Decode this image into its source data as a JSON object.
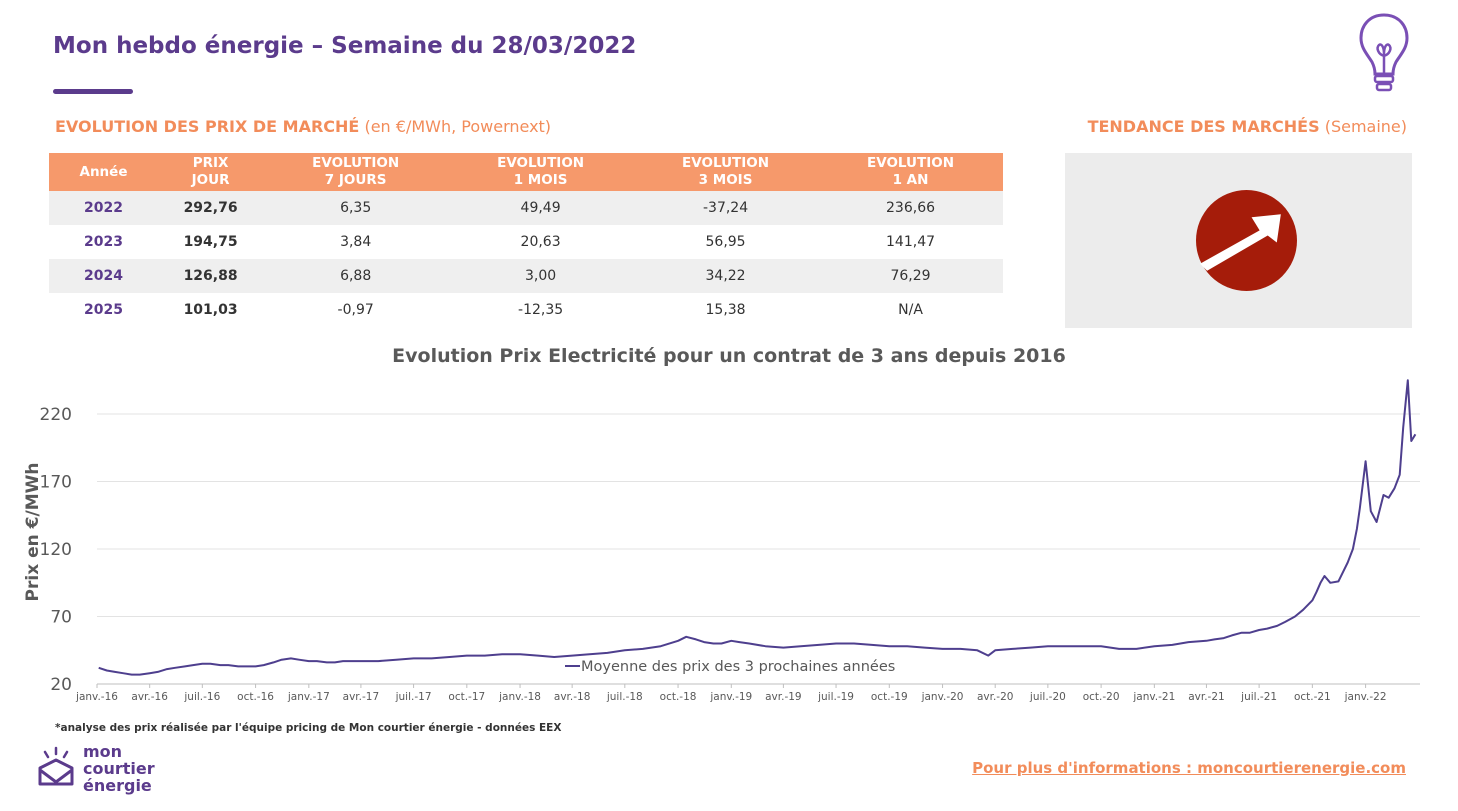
{
  "header": {
    "title": "Mon hebdo énergie – Semaine du 28/03/2022"
  },
  "market": {
    "title_bold": "EVOLUTION DES PRIX DE MARCHÉ",
    "title_rest": " (en €/MWh, Powernext)",
    "columns": [
      "Année",
      "PRIX\nJOUR",
      "EVOLUTION\n7 JOURS",
      "EVOLUTION\n1 MOIS",
      "EVOLUTION\n3 MOIS",
      "EVOLUTION\n1 AN"
    ],
    "rows": [
      [
        "2022",
        "292,76",
        "6,35",
        "49,49",
        "-37,24",
        "236,66"
      ],
      [
        "2023",
        "194,75",
        "3,84",
        "20,63",
        "56,95",
        "141,47"
      ],
      [
        "2024",
        "126,88",
        "6,88",
        "3,00",
        "34,22",
        "76,29"
      ],
      [
        "2025",
        "101,03",
        "-0,97",
        "-12,35",
        "15,38",
        "N/A"
      ]
    ]
  },
  "trend": {
    "title_bold": "TENDANCE DES MARCHÉS",
    "title_rest": " (Semaine)",
    "direction": "up",
    "icon": "arrow-up-right-icon",
    "color": "#a51c0a"
  },
  "chart_data": {
    "type": "line",
    "title": "Evolution Prix Electricité pour un contrat de 3 ans depuis 2016",
    "ylabel": "Prix en €/MWh",
    "ylim": [
      20,
      220
    ],
    "yticks": [
      20,
      70,
      120,
      170,
      220
    ],
    "grid": true,
    "legend_position": "bottom-center",
    "x_ticks": [
      "janv.-16",
      "avr.-16",
      "juil.-16",
      "oct.-16",
      "janv.-17",
      "avr.-17",
      "juil.-17",
      "oct.-17",
      "janv.-18",
      "avr.-18",
      "juil.-18",
      "oct.-18",
      "janv.-19",
      "avr.-19",
      "juil.-19",
      "oct.-19",
      "janv.-20",
      "avr.-20",
      "juil.-20",
      "oct.-20",
      "janv.-21",
      "avr.-21",
      "juil.-21",
      "oct.-21",
      "janv.-22"
    ],
    "series": [
      {
        "name": "Moyenne des prix des 3 prochaines années",
        "color": "#4e3f8e",
        "x": [
          "2016-01-04",
          "2016-01-18",
          "2016-02-01",
          "2016-02-15",
          "2016-03-01",
          "2016-03-15",
          "2016-04-01",
          "2016-04-15",
          "2016-05-01",
          "2016-05-15",
          "2016-06-01",
          "2016-06-15",
          "2016-07-01",
          "2016-07-15",
          "2016-08-01",
          "2016-08-15",
          "2016-09-01",
          "2016-09-15",
          "2016-10-01",
          "2016-10-15",
          "2016-11-01",
          "2016-11-15",
          "2016-12-01",
          "2016-12-15",
          "2017-01-01",
          "2017-01-15",
          "2017-02-01",
          "2017-02-15",
          "2017-03-01",
          "2017-03-15",
          "2017-04-01",
          "2017-05-01",
          "2017-06-01",
          "2017-07-01",
          "2017-08-01",
          "2017-09-01",
          "2017-10-01",
          "2017-11-01",
          "2017-12-01",
          "2018-01-01",
          "2018-02-01",
          "2018-03-01",
          "2018-04-01",
          "2018-05-01",
          "2018-06-01",
          "2018-07-01",
          "2018-08-01",
          "2018-09-01",
          "2018-10-01",
          "2018-10-15",
          "2018-11-01",
          "2018-11-15",
          "2018-12-01",
          "2018-12-15",
          "2019-01-01",
          "2019-01-15",
          "2019-02-01",
          "2019-03-01",
          "2019-04-01",
          "2019-05-01",
          "2019-06-01",
          "2019-07-01",
          "2019-08-01",
          "2019-09-01",
          "2019-10-01",
          "2019-11-01",
          "2019-12-01",
          "2020-01-01",
          "2020-02-01",
          "2020-03-01",
          "2020-03-20",
          "2020-04-01",
          "2020-05-01",
          "2020-06-01",
          "2020-07-01",
          "2020-08-01",
          "2020-09-01",
          "2020-10-01",
          "2020-11-01",
          "2020-12-01",
          "2021-01-01",
          "2021-02-01",
          "2021-03-01",
          "2021-04-01",
          "2021-04-15",
          "2021-05-01",
          "2021-05-15",
          "2021-06-01",
          "2021-06-15",
          "2021-07-01",
          "2021-07-15",
          "2021-08-01",
          "2021-08-15",
          "2021-09-01",
          "2021-09-15",
          "2021-10-01",
          "2021-10-08",
          "2021-10-15",
          "2021-10-22",
          "2021-11-01",
          "2021-11-15",
          "2021-12-01",
          "2021-12-10",
          "2021-12-17",
          "2021-12-22",
          "2022-01-01",
          "2022-01-10",
          "2022-01-20",
          "2022-02-01",
          "2022-02-10",
          "2022-02-20",
          "2022-03-01",
          "2022-03-07",
          "2022-03-15",
          "2022-03-21",
          "2022-03-28"
        ],
        "values": [
          32,
          30,
          29,
          28,
          27,
          27,
          28,
          29,
          31,
          32,
          33,
          34,
          35,
          35,
          34,
          34,
          33,
          33,
          33,
          34,
          36,
          38,
          39,
          38,
          37,
          37,
          36,
          36,
          37,
          37,
          37,
          37,
          38,
          39,
          39,
          40,
          41,
          41,
          42,
          42,
          41,
          40,
          41,
          42,
          43,
          45,
          46,
          48,
          52,
          55,
          53,
          51,
          50,
          50,
          52,
          51,
          50,
          48,
          47,
          48,
          49,
          50,
          50,
          49,
          48,
          48,
          47,
          46,
          46,
          45,
          41,
          45,
          46,
          47,
          48,
          48,
          48,
          48,
          46,
          46,
          48,
          49,
          51,
          52,
          53,
          54,
          56,
          58,
          58,
          60,
          61,
          63,
          66,
          70,
          75,
          82,
          88,
          95,
          100,
          95,
          96,
          110,
          120,
          135,
          150,
          185,
          148,
          140,
          160,
          158,
          165,
          175,
          210,
          245,
          200,
          205
        ]
      }
    ]
  },
  "footer": {
    "footnote": "*analyse des prix réalisée par l'équipe pricing de Mon courtier énergie -  données EEX",
    "logo_lines": [
      "mon",
      "courtier",
      "énergie"
    ],
    "more_info": "Pour plus d'informations : moncourtierenergie.com"
  },
  "colors": {
    "brand_purple": "#5b3b8c",
    "accent_orange": "#f28c5a",
    "header_orange": "#f6996b"
  }
}
